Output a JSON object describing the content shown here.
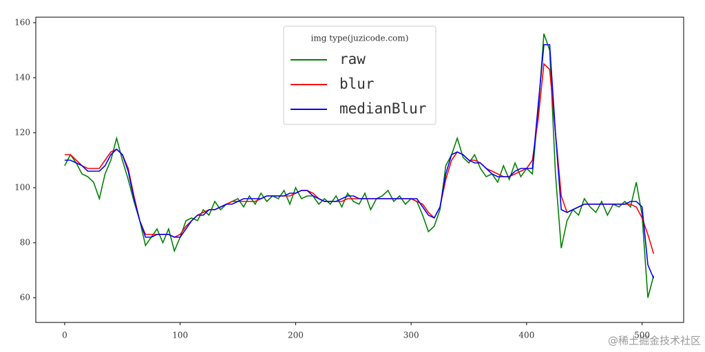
{
  "chart_data": {
    "type": "line",
    "legend_title": "img type(juzicode.com)",
    "legend_position": "upper center",
    "watermark": "@稀土掘金技术社区",
    "x": [
      0,
      5,
      10,
      15,
      20,
      25,
      30,
      35,
      40,
      45,
      50,
      55,
      60,
      65,
      70,
      75,
      80,
      85,
      90,
      95,
      100,
      105,
      110,
      115,
      120,
      125,
      130,
      135,
      140,
      145,
      150,
      155,
      160,
      165,
      170,
      175,
      180,
      185,
      190,
      195,
      200,
      205,
      210,
      215,
      220,
      225,
      230,
      235,
      240,
      245,
      250,
      255,
      260,
      265,
      270,
      275,
      280,
      285,
      290,
      295,
      300,
      305,
      310,
      315,
      320,
      325,
      330,
      335,
      340,
      345,
      350,
      355,
      360,
      365,
      370,
      375,
      380,
      385,
      390,
      395,
      400,
      405,
      410,
      415,
      420,
      425,
      430,
      435,
      440,
      445,
      450,
      455,
      460,
      465,
      470,
      475,
      480,
      485,
      490,
      495,
      500,
      505,
      510
    ],
    "series": [
      {
        "name": "raw",
        "color": "#008000",
        "values": [
          108,
          112,
          109,
          105,
          104,
          102,
          96,
          105,
          110,
          118,
          110,
          103,
          95,
          88,
          79,
          82,
          85,
          80,
          85,
          77,
          82,
          88,
          89,
          88,
          92,
          90,
          95,
          92,
          94,
          95,
          96,
          93,
          97,
          94,
          98,
          95,
          97,
          96,
          99,
          94,
          100,
          96,
          97,
          97,
          94,
          96,
          94,
          97,
          93,
          98,
          95,
          94,
          98,
          92,
          96,
          97,
          99,
          95,
          97,
          94,
          96,
          95,
          90,
          84,
          86,
          92,
          108,
          112,
          118,
          111,
          109,
          112,
          107,
          104,
          105,
          102,
          108,
          103,
          109,
          104,
          107,
          105,
          128,
          156,
          150,
          105,
          78,
          88,
          92,
          90,
          96,
          93,
          91,
          95,
          90,
          94,
          93,
          95,
          93,
          102,
          90,
          60,
          68
        ]
      },
      {
        "name": "blur",
        "color": "#ff0000",
        "values": [
          112,
          112,
          110,
          108,
          107,
          107,
          107,
          110,
          113,
          114,
          112,
          107,
          97,
          88,
          83,
          83,
          83,
          83,
          83,
          82,
          83,
          86,
          88,
          90,
          91,
          92,
          92,
          93,
          94,
          95,
          95,
          95,
          95,
          95,
          96,
          97,
          97,
          97,
          97,
          97,
          98,
          99,
          99,
          98,
          96,
          95,
          95,
          95,
          95,
          96,
          96,
          96,
          96,
          96,
          96,
          96,
          96,
          96,
          96,
          96,
          96,
          95,
          94,
          91,
          89,
          93,
          103,
          110,
          113,
          112,
          110,
          110,
          109,
          107,
          106,
          105,
          104,
          104,
          105,
          106,
          107,
          110,
          125,
          145,
          143,
          120,
          97,
          91,
          92,
          93,
          94,
          94,
          94,
          94,
          94,
          94,
          94,
          94,
          94,
          93,
          89,
          83,
          76
        ]
      },
      {
        "name": "medianBlur",
        "color": "#0000ff",
        "values": [
          110,
          110,
          109,
          108,
          106,
          106,
          106,
          108,
          112,
          114,
          112,
          106,
          96,
          88,
          82,
          82,
          83,
          83,
          83,
          82,
          82,
          85,
          88,
          90,
          90,
          92,
          92,
          93,
          94,
          94,
          95,
          96,
          96,
          96,
          96,
          97,
          97,
          97,
          97,
          98,
          98,
          99,
          99,
          97,
          96,
          95,
          95,
          95,
          96,
          97,
          97,
          96,
          96,
          96,
          96,
          96,
          96,
          96,
          96,
          96,
          96,
          96,
          93,
          90,
          89,
          93,
          105,
          112,
          113,
          112,
          110,
          109,
          109,
          107,
          105,
          104,
          104,
          104,
          106,
          107,
          107,
          107,
          130,
          152,
          152,
          120,
          92,
          91,
          92,
          93,
          94,
          94,
          94,
          94,
          94,
          94,
          94,
          94,
          95,
          95,
          93,
          72,
          67
        ]
      }
    ],
    "xlim": [
      -25,
      536
    ],
    "ylim": [
      51,
      162
    ],
    "xticks": [
      0,
      100,
      200,
      300,
      400,
      500
    ],
    "yticks": [
      60,
      80,
      100,
      120,
      140,
      160
    ]
  }
}
